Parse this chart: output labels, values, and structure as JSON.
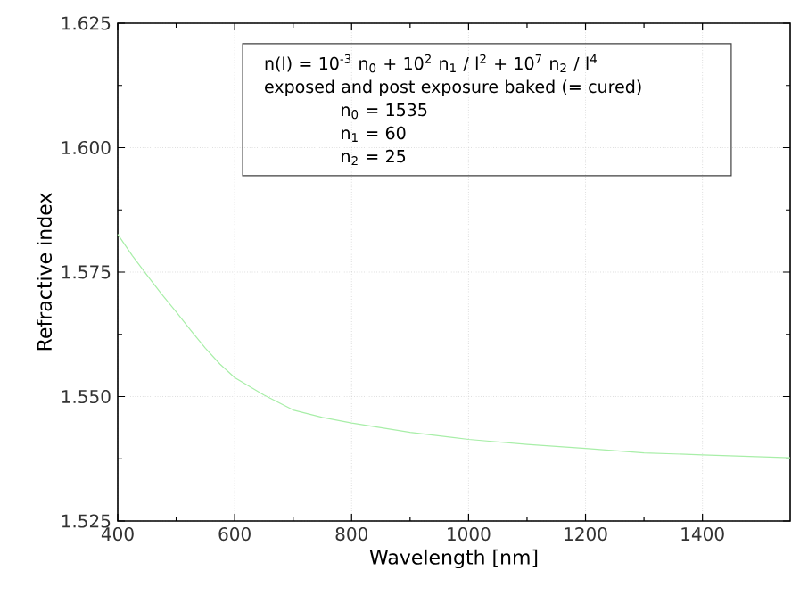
{
  "chart_data": {
    "type": "line",
    "xlabel": "Wavelength [nm]",
    "ylabel": "Refractive index",
    "x": [
      400,
      425,
      450,
      475,
      500,
      525,
      550,
      575,
      600,
      650,
      700,
      750,
      800,
      900,
      1000,
      1100,
      1200,
      1300,
      1400,
      1550
    ],
    "series": [
      {
        "color": "#a8eea8",
        "values": [
          1.5826,
          1.5783,
          1.5744,
          1.5706,
          1.567,
          1.5633,
          1.5597,
          1.5565,
          1.5538,
          1.5503,
          1.5473,
          1.5458,
          1.5447,
          1.5428,
          1.5414,
          1.5404,
          1.5396,
          1.5387,
          1.5383,
          1.5377
        ]
      }
    ],
    "xlim": [
      400,
      1550
    ],
    "xticks": [
      400,
      600,
      800,
      1000,
      1200,
      1400
    ],
    "ylim": [
      1.525,
      1.625
    ],
    "yticks": [
      {
        "value": 1.525,
        "label": "1.525"
      },
      {
        "value": 1.55,
        "label": "1.550"
      },
      {
        "value": 1.575,
        "label": "1.575"
      },
      {
        "value": 1.6,
        "label": "1.600"
      },
      {
        "value": 1.625,
        "label": "1.625"
      }
    ],
    "grid": true,
    "marker": "none",
    "line_style": "solid",
    "annotations": [
      "n(l) = 10$^{-3}$ n$_{0}$ + 10$^{2}$ n$_{1}$ / l$^{2}$ + 10$^{7}$ n$_{2}$ / l$^{4}$",
      "exposed and post exposure baked (= cured)",
      "n$_{0}$ = 1535",
      "n$_{1}$ =   60",
      "n$_{2}$ =   25"
    ]
  }
}
